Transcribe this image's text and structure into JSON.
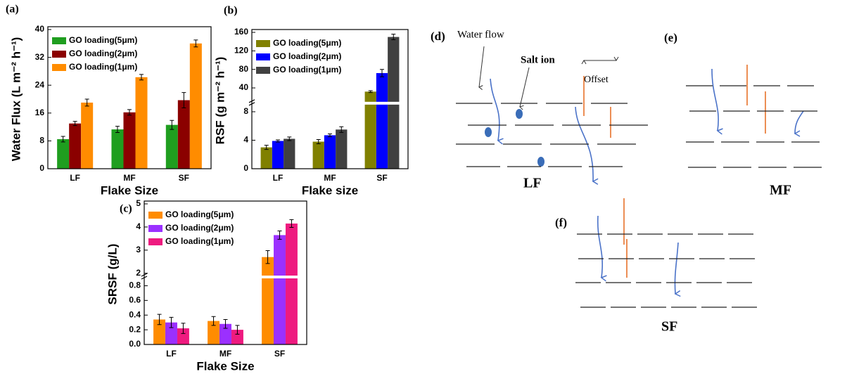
{
  "chart_data": [
    {
      "type": "bar",
      "title": "(a)",
      "y_label": "Water Flux (L m⁻² h⁻¹)",
      "x_label": "Flake Size",
      "categories": [
        "LF",
        "MF",
        "SF"
      ],
      "ylim": [
        0,
        40
      ],
      "yticks": [
        0,
        8,
        16,
        24,
        32,
        40
      ],
      "series": [
        {
          "name": "GO loading(5μm)",
          "color": "#1f9e1f",
          "values": [
            8.5,
            11.3,
            12.6
          ],
          "errors": [
            0.8,
            0.9,
            1.3
          ]
        },
        {
          "name": "GO loading(2μm)",
          "color": "#8b0000",
          "values": [
            13,
            16.2,
            19.7
          ],
          "errors": [
            0.6,
            0.8,
            2.2
          ]
        },
        {
          "name": "GO loading(1μm)",
          "color": "#ff8c00",
          "values": [
            19,
            26.3,
            36
          ],
          "errors": [
            1,
            0.8,
            1
          ]
        }
      ]
    },
    {
      "type": "bar",
      "title": "(b)",
      "y_label": "RSF (g m⁻² h⁻¹)",
      "x_label": "Flake size",
      "categories": [
        "LF",
        "MF",
        "SF"
      ],
      "ylim": [
        0,
        160
      ],
      "ybreak": [
        9,
        10
      ],
      "yticks": [
        0,
        4,
        8,
        40,
        80,
        120,
        160
      ],
      "series": [
        {
          "name": "GO loading(5μm)",
          "color": "#808000",
          "values": [
            3,
            3.8,
            32
          ],
          "errors": [
            0.3,
            0.3,
            2
          ]
        },
        {
          "name": "GO loading(2μm)",
          "color": "#0000ff",
          "values": [
            3.9,
            4.7,
            72
          ],
          "errors": [
            0.15,
            0.2,
            8
          ]
        },
        {
          "name": "GO loading(1μm)",
          "color": "#404040",
          "values": [
            4.2,
            5.5,
            150
          ],
          "errors": [
            0.25,
            0.4,
            6
          ]
        }
      ]
    },
    {
      "type": "bar",
      "title": "(c)",
      "y_label": "SRSF (g/L)",
      "x_label": "Flake Size",
      "categories": [
        "LF",
        "MF",
        "SF"
      ],
      "ylim": [
        0,
        5
      ],
      "ybreak": [
        0.9,
        1.9
      ],
      "yticks": [
        {
          "value": 0,
          "label": "0.0"
        },
        0.2,
        0.4,
        0.6,
        0.8,
        2,
        3,
        4,
        5
      ],
      "series": [
        {
          "name": "GO loading(5μm)",
          "color": "#ff8c00",
          "values": [
            0.34,
            0.32,
            2.7
          ],
          "errors": [
            0.07,
            0.06,
            0.28
          ]
        },
        {
          "name": "GO loading(2μm)",
          "color": "#9b30ff",
          "values": [
            0.3,
            0.28,
            3.65
          ],
          "errors": [
            0.07,
            0.06,
            0.18
          ]
        },
        {
          "name": "GO loading(1μm)",
          "color": "#ee1a7f",
          "values": [
            0.22,
            0.2,
            4.15
          ],
          "errors": [
            0.07,
            0.06,
            0.17
          ]
        }
      ]
    }
  ],
  "diagrams": {
    "d": {
      "label": "(d)",
      "water_flow": "Water flow",
      "salt_ion": "Salt ion",
      "offset": "Offset",
      "caption": "LF"
    },
    "e": {
      "label": "(e)",
      "caption": "MF"
    },
    "f": {
      "label": "(f)",
      "caption": "SF"
    }
  }
}
